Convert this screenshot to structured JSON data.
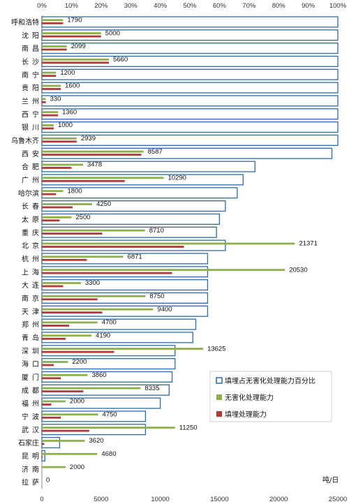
{
  "chart_data": {
    "type": "bar",
    "orientation": "horizontal",
    "categories": [
      "呼和浩特",
      "沈阳",
      "南昌",
      "长沙",
      "南宁",
      "贵阳",
      "兰州",
      "西宁",
      "银川",
      "乌鲁木齐",
      "西安",
      "合肥",
      "广州",
      "哈尔滨",
      "长春",
      "太原",
      "重庆",
      "北京",
      "杭州",
      "上海",
      "大连",
      "南京",
      "天津",
      "郑州",
      "青岛",
      "深圳",
      "海口",
      "厦门",
      "成都",
      "福州",
      "宁波",
      "武汉",
      "石家庄",
      "昆明",
      "济南",
      "拉萨"
    ],
    "series": [
      {
        "name": "填埋占无害化处理能力百分比",
        "axis": "top",
        "unit": "%",
        "color": "#2e6aa8",
        "values": [
          100,
          100,
          100,
          100,
          100,
          100,
          100,
          100,
          100,
          100,
          98,
          72,
          68,
          66,
          62,
          60,
          59,
          62,
          56,
          56,
          56,
          56,
          56,
          52,
          51,
          45,
          45,
          44,
          43,
          40,
          35,
          35,
          6,
          1,
          0,
          0
        ]
      },
      {
        "name": "无害化处理能力",
        "axis": "bottom",
        "color": "#8db04a",
        "values": [
          1790,
          5000,
          2099,
          5660,
          1200,
          1600,
          330,
          1360,
          1000,
          2939,
          8587,
          3478,
          10290,
          1800,
          4250,
          2500,
          8710,
          21371,
          6871,
          20530,
          3300,
          8750,
          9400,
          4700,
          4190,
          13625,
          2200,
          3860,
          8335,
          2000,
          4750,
          11250,
          3620,
          4680,
          2000,
          0
        ],
        "data_labels": [
          "1790",
          "5000",
          "2099",
          "5660",
          "1200",
          "1600",
          "330",
          "1360",
          "1000",
          "2939",
          "8587",
          "3478",
          "10290",
          "1800",
          "4250",
          "2500",
          "8710",
          "21371",
          "6871",
          "20530",
          "3300",
          "8750",
          "9400",
          "4700",
          "4190",
          "13625",
          "2200",
          "3860",
          "8335",
          "2000",
          "4750",
          "11250",
          "3620",
          "4680",
          "2000",
          "0"
        ]
      },
      {
        "name": "填埋处理能力",
        "axis": "bottom",
        "color": "#b03a3a",
        "values": [
          1790,
          5000,
          2099,
          5660,
          1200,
          1600,
          330,
          1360,
          1000,
          2939,
          8400,
          2500,
          7000,
          1200,
          2600,
          1500,
          5100,
          12000,
          3800,
          11000,
          1800,
          4700,
          5100,
          2300,
          2000,
          6100,
          1000,
          1600,
          3500,
          800,
          1600,
          4000,
          200,
          50,
          0,
          0
        ]
      }
    ],
    "x_top": {
      "ticks": [
        "0%",
        "10%",
        "20%",
        "30%",
        "40%",
        "50%",
        "60%",
        "70%",
        "80%",
        "90%",
        "100%"
      ],
      "min": 0,
      "max": 100
    },
    "x_bottom": {
      "ticks": [
        "0",
        "5000",
        "10000",
        "15000",
        "20000",
        "25000"
      ],
      "min": 0,
      "max": 25000
    },
    "unit_label": "吨/日",
    "legend_position": "bottom-right",
    "title": "",
    "xlabel": "",
    "ylabel": ""
  }
}
